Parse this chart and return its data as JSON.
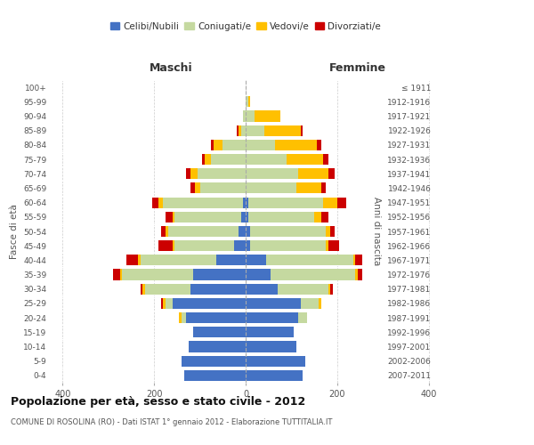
{
  "age_groups": [
    "0-4",
    "5-9",
    "10-14",
    "15-19",
    "20-24",
    "25-29",
    "30-34",
    "35-39",
    "40-44",
    "45-49",
    "50-54",
    "55-59",
    "60-64",
    "65-69",
    "70-74",
    "75-79",
    "80-84",
    "85-89",
    "90-94",
    "95-99",
    "100+"
  ],
  "birth_years": [
    "2007-2011",
    "2002-2006",
    "1997-2001",
    "1992-1996",
    "1987-1991",
    "1982-1986",
    "1977-1981",
    "1972-1976",
    "1967-1971",
    "1962-1966",
    "1957-1961",
    "1952-1956",
    "1947-1951",
    "1942-1946",
    "1937-1941",
    "1932-1936",
    "1927-1931",
    "1922-1926",
    "1917-1921",
    "1912-1916",
    "≤ 1911"
  ],
  "males": {
    "celibi": [
      135,
      140,
      125,
      115,
      130,
      160,
      120,
      115,
      65,
      25,
      15,
      10,
      5,
      0,
      0,
      0,
      0,
      0,
      0,
      0,
      0
    ],
    "coniugati": [
      0,
      0,
      0,
      0,
      10,
      15,
      100,
      155,
      165,
      130,
      155,
      145,
      175,
      100,
      105,
      75,
      50,
      10,
      5,
      0,
      0
    ],
    "vedovi": [
      0,
      0,
      0,
      0,
      5,
      5,
      5,
      5,
      5,
      5,
      5,
      5,
      10,
      10,
      15,
      15,
      20,
      5,
      0,
      0,
      0
    ],
    "divorziati": [
      0,
      0,
      0,
      0,
      0,
      5,
      5,
      15,
      25,
      30,
      10,
      15,
      15,
      10,
      10,
      5,
      5,
      5,
      0,
      0,
      0
    ]
  },
  "females": {
    "nubili": [
      125,
      130,
      110,
      105,
      115,
      120,
      70,
      55,
      45,
      10,
      10,
      5,
      5,
      0,
      0,
      0,
      0,
      0,
      0,
      0,
      0
    ],
    "coniugate": [
      0,
      0,
      0,
      0,
      20,
      40,
      110,
      185,
      190,
      165,
      165,
      145,
      165,
      110,
      115,
      90,
      65,
      40,
      20,
      5,
      0
    ],
    "vedove": [
      0,
      0,
      0,
      0,
      0,
      5,
      5,
      5,
      5,
      5,
      10,
      15,
      30,
      55,
      65,
      80,
      90,
      80,
      55,
      5,
      0
    ],
    "divorziate": [
      0,
      0,
      0,
      0,
      0,
      0,
      5,
      10,
      15,
      25,
      10,
      15,
      20,
      10,
      15,
      10,
      10,
      5,
      0,
      0,
      0
    ]
  },
  "colors": {
    "celibi_nubili": "#4472c4",
    "coniugati": "#c5d9a0",
    "vedovi": "#ffc000",
    "divorziati": "#cc0000"
  },
  "xlim": 420,
  "title": "Popolazione per età, sesso e stato civile - 2012",
  "subtitle": "COMUNE DI ROSOLINA (RO) - Dati ISTAT 1° gennaio 2012 - Elaborazione TUTTITALIA.IT",
  "ylabel_left": "Fasce di età",
  "ylabel_right": "Anni di nascita",
  "xlabel_left": "Maschi",
  "xlabel_right": "Femmine",
  "bg_color": "#ffffff",
  "grid_color": "#cccccc",
  "bar_height": 0.75
}
